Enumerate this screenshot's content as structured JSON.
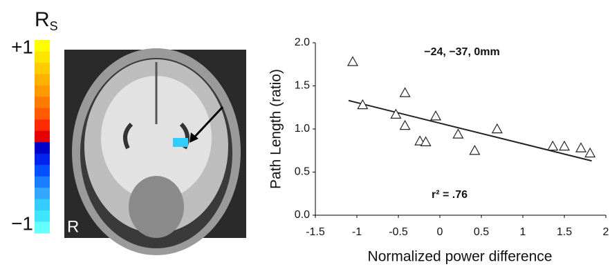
{
  "chart_data": {
    "type": "scatter",
    "x_label": "Normalized power difference",
    "y_label": "Path Length (ratio)",
    "annotations": [
      "−24, −37, 0mm",
      "r² = .76"
    ],
    "x": [
      -1.05,
      -0.93,
      -0.53,
      -0.42,
      -0.42,
      -0.24,
      -0.17,
      -0.05,
      0.22,
      0.42,
      0.69,
      1.36,
      1.5,
      1.7,
      1.81
    ],
    "values": [
      1.78,
      1.28,
      1.17,
      1.42,
      1.04,
      0.86,
      0.85,
      1.15,
      0.94,
      0.75,
      1.0,
      0.8,
      0.8,
      0.78,
      0.72
    ],
    "marker": "triangle",
    "color": "#222222",
    "fit_line": {
      "x": [
        -1.1,
        1.83
      ],
      "y": [
        1.33,
        0.63
      ]
    },
    "xlim": [
      -1.5,
      2
    ],
    "xticks": [
      -1.5,
      -1,
      -0.5,
      0,
      0.5,
      1,
      1.5,
      2
    ],
    "ylim": [
      0,
      2
    ],
    "yticks": [
      {
        "value": 0,
        "label": "0.0"
      },
      0.5,
      {
        "value": 1,
        "label": "1.0"
      },
      1.5,
      {
        "value": 2,
        "label": "2.0"
      }
    ],
    "colorbar": {
      "label": "R",
      "label_sub": "S",
      "lim": [
        -1,
        1
      ],
      "ticks": [
        {
          "value": 1,
          "label": "+1"
        },
        {
          "value": -1,
          "label": "−1"
        }
      ],
      "colors": [
        "#ffff00",
        "#ffe600",
        "#ffcc00",
        "#ffb300",
        "#ff9900",
        "#ff7a00",
        "#ff5a00",
        "#ff2a00",
        "#e60000",
        "#0000c8",
        "#0022ee",
        "#0050ff",
        "#1a7dff",
        "#33a6ff",
        "#33ccff",
        "#40e6ff",
        "#66ffff"
      ]
    },
    "image_label": "R"
  }
}
